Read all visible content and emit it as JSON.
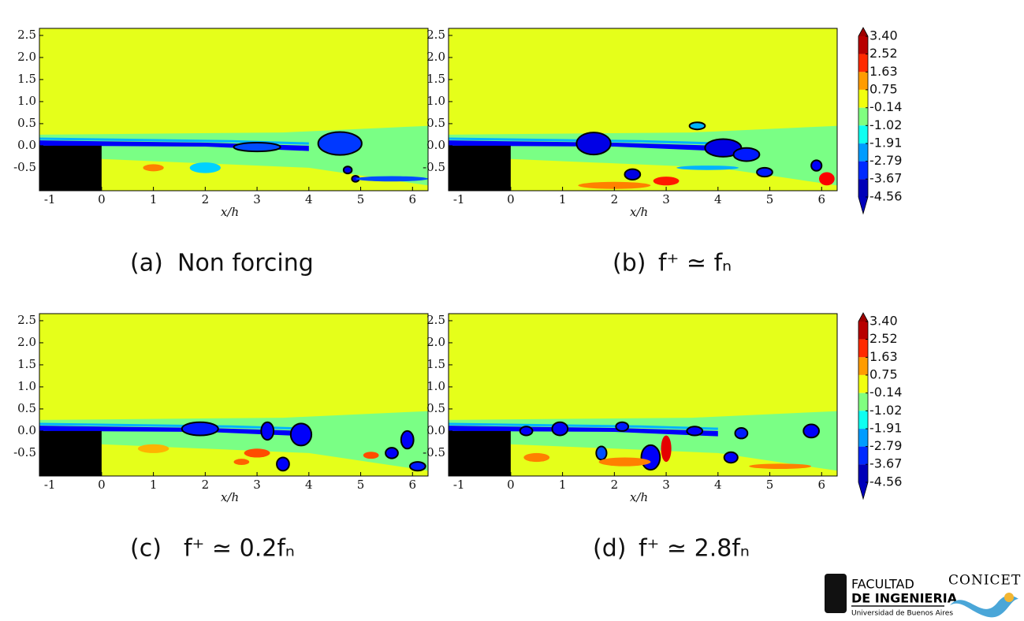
{
  "chart_data": [
    {
      "type": "contour",
      "panel": "(a)",
      "caption": "Non forcing",
      "xlabel": "x/h",
      "colormap": "jet",
      "xlim": [
        -1.2,
        6.3
      ],
      "ylim": [
        -1.02,
        2.66
      ],
      "xticks": [
        -1,
        0,
        1,
        2,
        3,
        4,
        5,
        6
      ],
      "yticks": [
        2.5,
        {
          "value": 2,
          "label": "2.0"
        },
        1.5,
        {
          "value": 1,
          "label": "1.0"
        },
        0.5,
        {
          "value": 0,
          "label": "0.0"
        },
        -0.5
      ]
    },
    {
      "type": "contour",
      "panel": "(b)",
      "caption": "f⁺ ≃ fₙ",
      "xlabel": "x/h",
      "colormap": "jet",
      "xlim": [
        -1.2,
        6.3
      ],
      "ylim": [
        -1.02,
        2.66
      ],
      "xticks": [
        -1,
        0,
        1,
        2,
        3,
        4,
        5,
        6
      ],
      "yticks": [
        2.5,
        {
          "value": 2,
          "label": "2.0"
        },
        1.5,
        {
          "value": 1,
          "label": "1.0"
        },
        0.5,
        {
          "value": 0,
          "label": "0.0"
        },
        -0.5
      ],
      "colorbar": {
        "clim": [
          -4.56,
          3.4
        ],
        "ticks": [
          {
            "value": 3.4,
            "label": "3.40"
          },
          2.52,
          1.63,
          0.75,
          -0.14,
          -1.02,
          -1.91,
          -2.79,
          -3.67,
          -4.56
        ]
      }
    },
    {
      "type": "contour",
      "panel": "(c)",
      "caption": "f⁺ ≃ 0.2fₙ",
      "xlabel": "x/h",
      "colormap": "jet",
      "xlim": [
        -1.2,
        6.3
      ],
      "ylim": [
        -1.02,
        2.66
      ],
      "xticks": [
        -1,
        0,
        1,
        2,
        3,
        4,
        5,
        6
      ],
      "yticks": [
        2.5,
        {
          "value": 2,
          "label": "2.0"
        },
        1.5,
        {
          "value": 1,
          "label": "1.0"
        },
        0.5,
        {
          "value": 0,
          "label": "0.0"
        },
        -0.5
      ]
    },
    {
      "type": "contour",
      "panel": "(d)",
      "caption": "f⁺ ≃ 2.8fₙ",
      "xlabel": "x/h",
      "colormap": "jet",
      "xlim": [
        -1.2,
        6.3
      ],
      "ylim": [
        -1.02,
        2.66
      ],
      "xticks": [
        -1,
        0,
        1,
        2,
        3,
        4,
        5,
        6
      ],
      "yticks": [
        2.5,
        {
          "value": 2,
          "label": "2.0"
        },
        1.5,
        {
          "value": 1,
          "label": "1.0"
        },
        0.5,
        {
          "value": 0,
          "label": "0.0"
        },
        -0.5
      ],
      "colorbar": {
        "clim": [
          -4.56,
          3.4
        ],
        "ticks": [
          {
            "value": 3.4,
            "label": "3.40"
          },
          2.52,
          1.63,
          0.75,
          -0.14,
          -1.02,
          -1.91,
          -2.79,
          -3.67,
          -4.56
        ]
      }
    }
  ],
  "logos": {
    "faculty": "FACULTAD",
    "faculty_sub": "DE INGENIERIA",
    "university": "Universidad de Buenos Aires",
    "council": "CONICET"
  }
}
